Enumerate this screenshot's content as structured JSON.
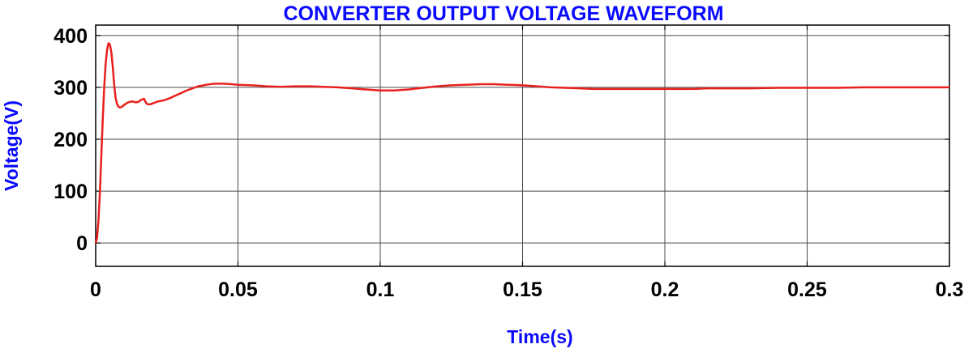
{
  "chart_data": {
    "type": "line",
    "title": "CONVERTER OUTPUT VOLTAGE WAVEFORM",
    "xlabel": "Time(s)",
    "ylabel": "Voltage(V)",
    "xlim": [
      0,
      0.3
    ],
    "ylim": [
      -45,
      420
    ],
    "xticks": [
      0,
      0.05,
      0.1,
      0.15,
      0.2,
      0.25,
      0.3
    ],
    "xtick_labels": [
      "0",
      "0.05",
      "0.1",
      "0.15",
      "0.2",
      "0.25",
      "0.3"
    ],
    "yticks": [
      0,
      100,
      200,
      300,
      400
    ],
    "ytick_labels": [
      "0",
      "100",
      "200",
      "300",
      "400"
    ],
    "grid": true,
    "series": [
      {
        "color": "#e8201c",
        "x": [
          0,
          0.0005,
          0.001,
          0.0015,
          0.002,
          0.0025,
          0.003,
          0.0035,
          0.004,
          0.0045,
          0.005,
          0.0055,
          0.006,
          0.0065,
          0.007,
          0.0075,
          0.008,
          0.0085,
          0.009,
          0.0095,
          0.01,
          0.011,
          0.012,
          0.013,
          0.014,
          0.015,
          0.016,
          0.017,
          0.0175,
          0.018,
          0.019,
          0.02,
          0.021,
          0.022,
          0.024,
          0.026,
          0.028,
          0.03,
          0.032,
          0.034,
          0.036,
          0.038,
          0.04,
          0.042,
          0.045,
          0.048,
          0.05,
          0.055,
          0.06,
          0.065,
          0.07,
          0.075,
          0.08,
          0.085,
          0.09,
          0.095,
          0.1,
          0.105,
          0.11,
          0.115,
          0.12,
          0.125,
          0.13,
          0.135,
          0.14,
          0.145,
          0.15,
          0.155,
          0.16,
          0.165,
          0.17,
          0.175,
          0.18,
          0.185,
          0.19,
          0.195,
          0.2,
          0.205,
          0.21,
          0.215,
          0.22,
          0.23,
          0.24,
          0.25,
          0.26,
          0.27,
          0.28,
          0.29,
          0.3
        ],
        "y": [
          0,
          10,
          45,
          100,
          170,
          240,
          300,
          345,
          372,
          385,
          383,
          368,
          340,
          305,
          280,
          268,
          263,
          261,
          262,
          264,
          266,
          270,
          272,
          273,
          271,
          272,
          276,
          278,
          272,
          268,
          267,
          269,
          271,
          273,
          275,
          279,
          284,
          289,
          294,
          298,
          302,
          304,
          306,
          307,
          307,
          306,
          305,
          304,
          302,
          301,
          302,
          302,
          301,
          300,
          298,
          296,
          294,
          294,
          296,
          299,
          302,
          304,
          305,
          306,
          306,
          305,
          304,
          302,
          300,
          299,
          298,
          297,
          297,
          297,
          297,
          297,
          297,
          297,
          297,
          298,
          298,
          298,
          299,
          299,
          299,
          300,
          300,
          300,
          300
        ]
      }
    ]
  }
}
